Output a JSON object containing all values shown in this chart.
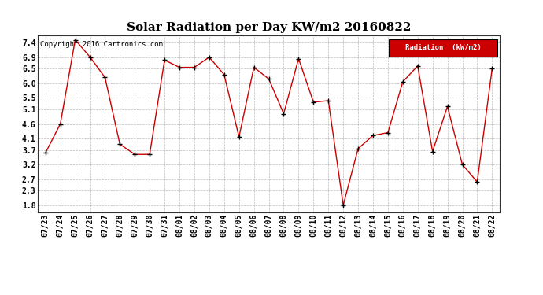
{
  "title": "Solar Radiation per Day KW/m2 20160822",
  "copyright": "Copyright 2016 Cartronics.com",
  "legend_label": "Radiation  (kW/m2)",
  "dates": [
    "07/23",
    "07/24",
    "07/25",
    "07/26",
    "07/27",
    "07/28",
    "07/29",
    "07/30",
    "07/31",
    "08/01",
    "08/02",
    "08/03",
    "08/04",
    "08/05",
    "08/06",
    "08/07",
    "08/08",
    "08/09",
    "08/10",
    "08/11",
    "08/12",
    "08/13",
    "08/14",
    "08/15",
    "08/16",
    "08/17",
    "08/18",
    "08/19",
    "08/20",
    "08/21",
    "08/22"
  ],
  "values": [
    3.6,
    4.6,
    7.5,
    6.9,
    6.2,
    3.9,
    3.55,
    3.55,
    6.8,
    6.55,
    6.55,
    6.9,
    6.3,
    4.15,
    6.55,
    6.15,
    4.95,
    6.85,
    5.35,
    5.4,
    1.8,
    3.75,
    4.2,
    4.3,
    6.05,
    6.6,
    3.65,
    5.2,
    3.2,
    2.6,
    6.5
  ],
  "yticks": [
    1.8,
    2.3,
    2.7,
    3.2,
    3.7,
    4.1,
    4.6,
    5.1,
    5.5,
    6.0,
    6.5,
    6.9,
    7.4
  ],
  "ylim": [
    1.55,
    7.65
  ],
  "line_color": "#cc0000",
  "marker_color": "#000000",
  "bg_color": "#ffffff",
  "grid_color": "#bbbbbb",
  "legend_bg": "#cc0000",
  "legend_text_color": "#ffffff",
  "title_fontsize": 11,
  "tick_fontsize": 7,
  "copyright_fontsize": 6.5
}
